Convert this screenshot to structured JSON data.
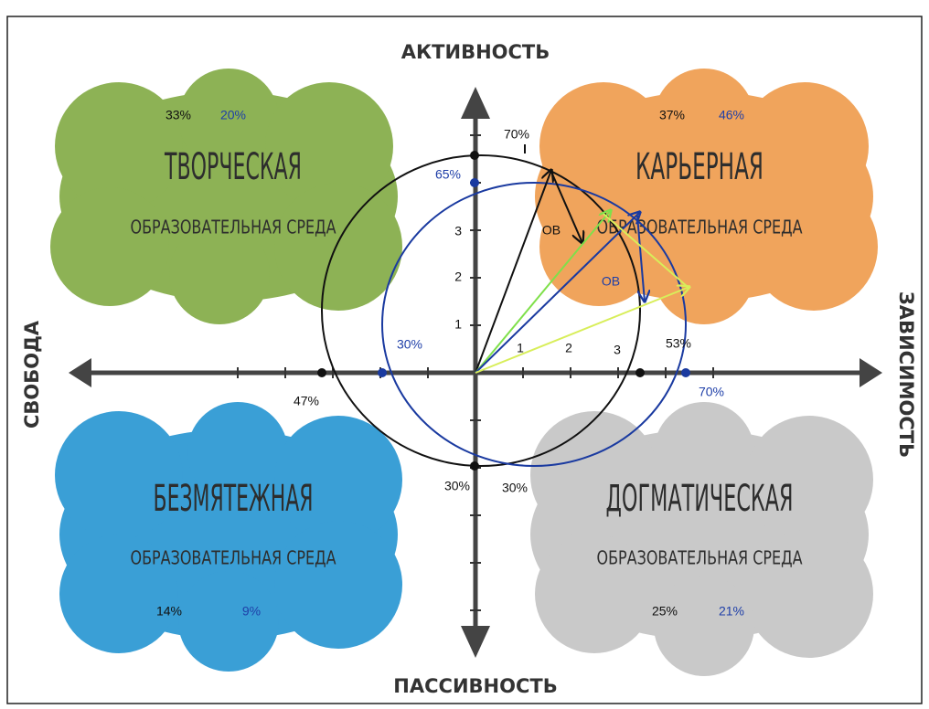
{
  "axes": {
    "top": "АКТИВНОСТЬ",
    "bottom": "ПАССИВНОСТЬ",
    "left": "СВОБОДА",
    "right": "ЗАВИСИМОСТЬ"
  },
  "quadrants": [
    {
      "title": "ТВОРЧЕСКАЯ",
      "subtitle": "ОБРАЗОВАТЕЛЬНАЯ СРЕДА",
      "value_black": "33%",
      "value_blue": "20%"
    },
    {
      "title": "КАРЬЕРНАЯ",
      "subtitle": "ОБРАЗОВАТЕЛЬНАЯ СРЕДА",
      "value_black": "37%",
      "value_blue": "46%"
    },
    {
      "title": "БЕЗМЯТЕЖНАЯ",
      "subtitle": "ОБРАЗОВАТЕЛЬНАЯ СРЕДА",
      "value_black": "14%",
      "value_blue": "9%"
    },
    {
      "title": "ДОГМАТИЧЕСКАЯ",
      "subtitle": "ОБРАЗОВАТЕЛЬНАЯ СРЕДА",
      "value_black": "25%",
      "value_blue": "21%"
    }
  ],
  "circle_labels": {
    "black_top": "70%",
    "blue_top": "65%",
    "blue_left": "30%",
    "black_left": "47%",
    "black_right": "53%",
    "blue_right": "70%",
    "black_bottom": "30%",
    "blue_bottom": "30%"
  },
  "x_ticks": [
    "1",
    "2",
    "3"
  ],
  "y_ticks": [
    "1",
    "2",
    "3"
  ],
  "vector_labels": [
    "ОВ",
    "ОВ"
  ]
}
